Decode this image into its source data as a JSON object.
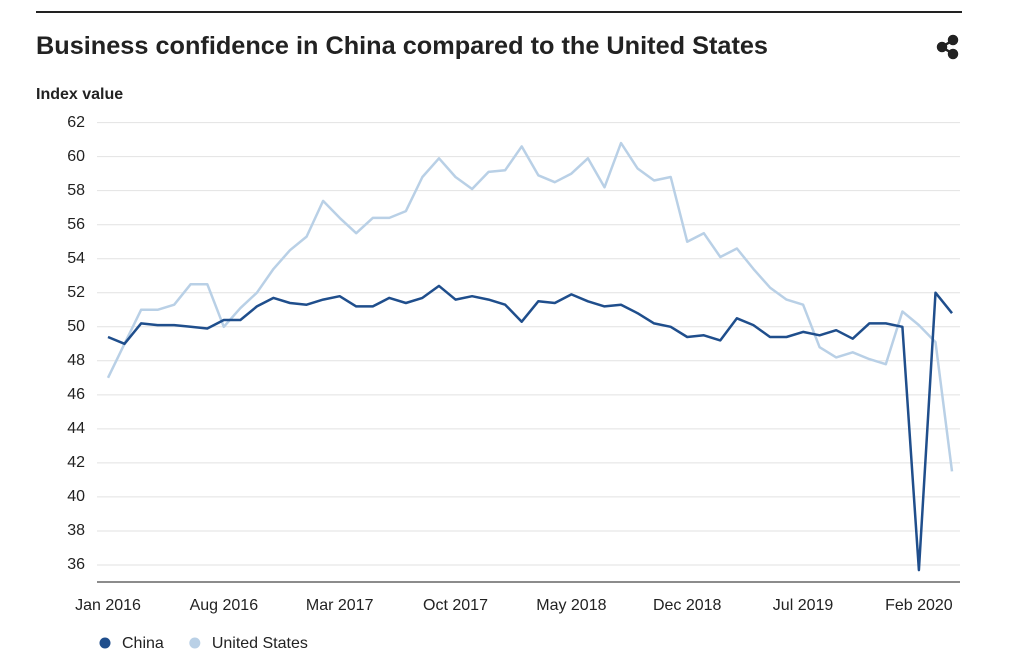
{
  "chart_data": {
    "type": "line",
    "title": "Business confidence in China compared to the United States",
    "y_label": "Index value",
    "categories": [
      "Jan 2016",
      null,
      null,
      null,
      null,
      null,
      null,
      "Aug 2016",
      null,
      null,
      null,
      null,
      null,
      null,
      "Mar 2017",
      null,
      null,
      null,
      null,
      null,
      null,
      "Oct 2017",
      null,
      null,
      null,
      null,
      null,
      null,
      "May 2018",
      null,
      null,
      null,
      null,
      null,
      null,
      "Dec 2018",
      null,
      null,
      null,
      null,
      null,
      null,
      "Jul 2019",
      null,
      null,
      null,
      null,
      null,
      null,
      "Feb 2020",
      null,
      null
    ],
    "series": [
      {
        "name": "China",
        "color": "#1f4e8c",
        "values": [
          49.4,
          49.0,
          50.2,
          50.1,
          50.1,
          50.0,
          49.9,
          50.4,
          50.4,
          51.2,
          51.7,
          51.4,
          51.3,
          51.6,
          51.8,
          51.2,
          51.2,
          51.7,
          51.4,
          51.7,
          52.4,
          51.6,
          51.8,
          51.6,
          51.3,
          50.3,
          51.5,
          51.4,
          51.9,
          51.5,
          51.2,
          51.3,
          50.8,
          50.2,
          50.0,
          49.4,
          49.5,
          49.2,
          50.5,
          50.1,
          49.4,
          49.4,
          49.7,
          49.5,
          49.8,
          49.3,
          50.2,
          50.2,
          50.0,
          35.7,
          52.0,
          50.8
        ]
      },
      {
        "name": "United States",
        "color": "#b9d0e6",
        "values": [
          47.0,
          49.0,
          51.0,
          51.0,
          51.3,
          52.5,
          52.5,
          50.0,
          51.1,
          52.0,
          53.4,
          54.5,
          55.3,
          57.4,
          56.4,
          55.5,
          56.4,
          56.4,
          56.8,
          58.8,
          59.9,
          58.8,
          58.1,
          59.1,
          59.2,
          60.6,
          58.9,
          58.5,
          59.0,
          59.9,
          58.2,
          60.8,
          59.3,
          58.6,
          58.8,
          55.0,
          55.5,
          54.1,
          54.6,
          53.4,
          52.3,
          51.6,
          51.3,
          48.8,
          48.2,
          48.5,
          48.1,
          47.8,
          50.9,
          50.1,
          49.1,
          41.5
        ]
      }
    ],
    "ylim": [
      35,
      62
    ],
    "yticks": [
      36,
      38,
      40,
      42,
      44,
      46,
      48,
      50,
      52,
      54,
      56,
      58,
      60,
      62
    ],
    "grid": true
  }
}
